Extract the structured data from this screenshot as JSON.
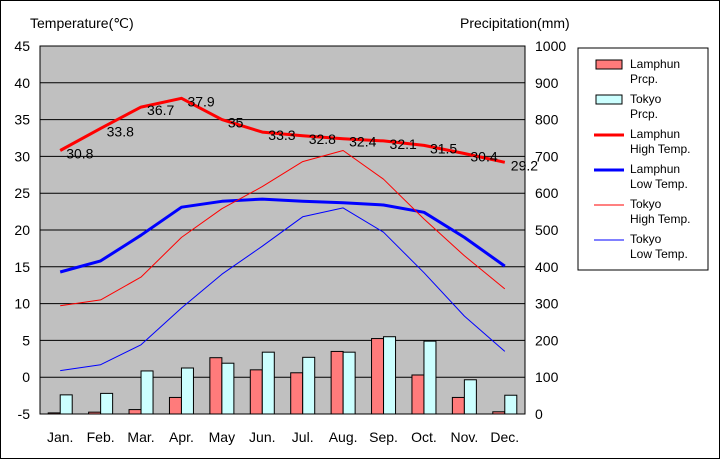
{
  "chart_data": {
    "type": "bar+line",
    "left_axis_title": "Temperature(℃)",
    "right_axis_title": "Precipitation(mm)",
    "categories": [
      "Jan.",
      "Feb.",
      "Mar.",
      "Apr.",
      "May",
      "Jun.",
      "Jul.",
      "Aug.",
      "Sep.",
      "Oct.",
      "Nov.",
      "Dec."
    ],
    "left_ticks": [
      "45",
      "40",
      "35",
      "30",
      "25",
      "20",
      "15",
      "10",
      "5",
      "0",
      "-5"
    ],
    "right_ticks": [
      "1000",
      "900",
      "800",
      "700",
      "600",
      "500",
      "400",
      "300",
      "200",
      "100",
      "0"
    ],
    "ylim_temperature": [
      -5,
      45
    ],
    "ylim_precipitation": [
      0,
      1000
    ],
    "grid": true,
    "legend_position": "right",
    "series": [
      {
        "name": "Lamphun Prcp.",
        "legend_lines": [
          "Lamphun",
          "Prcp."
        ],
        "kind": "bar",
        "axis": "precipitation",
        "color": "#ff7b7b",
        "values": [
          3,
          5,
          12,
          45,
          153,
          120,
          112,
          170,
          205,
          106,
          45,
          6
        ]
      },
      {
        "name": "Tokyo Prcp.",
        "legend_lines": [
          "Tokyo",
          "Prcp."
        ],
        "kind": "bar",
        "axis": "precipitation",
        "color": "#ccffff",
        "values": [
          52,
          56,
          117,
          125,
          138,
          168,
          154,
          168,
          210,
          198,
          93,
          51
        ]
      },
      {
        "name": "Lamphun High Temp.",
        "legend_lines": [
          "Lamphun",
          "High Temp."
        ],
        "kind": "line",
        "axis": "temperature",
        "color": "#ff0000",
        "width": 3,
        "values": [
          30.8,
          33.8,
          36.7,
          37.9,
          35.0,
          33.3,
          32.8,
          32.4,
          32.1,
          31.5,
          30.4,
          29.2
        ],
        "labels": [
          "30.8",
          "33.8",
          "36.7",
          "37.9",
          "35",
          "33.3",
          "32.8",
          "32.4",
          "32.1",
          "31.5",
          "30.4",
          "29.2"
        ]
      },
      {
        "name": "Lamphun Low Temp.",
        "legend_lines": [
          "Lamphun",
          "Low Temp."
        ],
        "kind": "line",
        "axis": "temperature",
        "color": "#0000ff",
        "width": 3,
        "values": [
          14.3,
          15.8,
          19.3,
          23.1,
          23.9,
          24.2,
          23.9,
          23.7,
          23.4,
          22.4,
          19.0,
          15.1
        ]
      },
      {
        "name": "Tokyo High Temp.",
        "legend_lines": [
          "Tokyo",
          "High Temp."
        ],
        "kind": "line",
        "axis": "temperature",
        "color": "#ff0000",
        "width": 1,
        "values": [
          9.7,
          10.5,
          13.6,
          19.0,
          22.9,
          25.9,
          29.3,
          30.8,
          26.9,
          21.5,
          16.5,
          12.0
        ]
      },
      {
        "name": "Tokyo Low Temp.",
        "legend_lines": [
          "Tokyo",
          "Low Temp."
        ],
        "kind": "line",
        "axis": "temperature",
        "color": "#0000ff",
        "width": 1,
        "values": [
          0.9,
          1.7,
          4.4,
          9.4,
          14.0,
          17.8,
          21.8,
          23.0,
          19.7,
          14.2,
          8.3,
          3.5
        ]
      }
    ]
  }
}
